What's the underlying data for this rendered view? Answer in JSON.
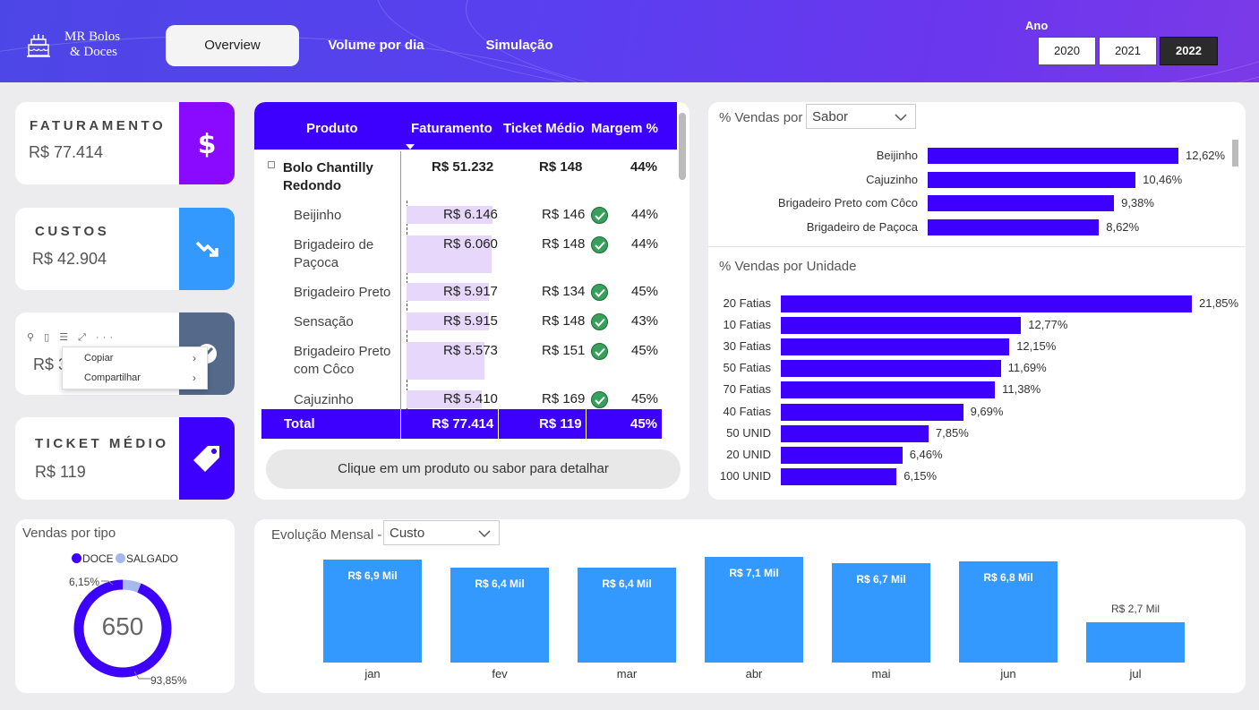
{
  "header": {
    "logo_line1": "MR Bolos",
    "logo_line2": "& Doces",
    "tabs": [
      "Overview",
      "Volume por dia",
      "Simulação"
    ],
    "active_tab": "Overview",
    "year_label": "Ano",
    "years": [
      "2020",
      "2021",
      "2022"
    ],
    "selected_year": "2022"
  },
  "kpis": {
    "faturamento": {
      "title": "FATURAMENTO",
      "value": "R$ 77.414",
      "color": "#8a0aff"
    },
    "custos": {
      "title": "CUSTOS",
      "value": "R$ 42.904",
      "color": "#3399ff"
    },
    "lucro": {
      "value_partial": "R$ 3",
      "color": "#556a8a"
    },
    "ticket": {
      "title": "TICKET MÉDIO",
      "value": "R$ 119",
      "color": "#3d00ff"
    }
  },
  "context_menu": {
    "items": [
      "Copiar",
      "Compartilhar"
    ]
  },
  "table": {
    "headers": [
      "Produto",
      "Faturamento",
      "Ticket Médio",
      "Margem %"
    ],
    "group": {
      "name_line1": "Bolo Chantilly",
      "name_line2": "Redondo",
      "faturamento": "R$ 51.232",
      "ticket": "R$ 148",
      "margem": "44%"
    },
    "rows": [
      {
        "name_line1": "Beijinho",
        "name_line2": "",
        "faturamento": "R$ 6.146",
        "ticket": "R$ 146",
        "margem": "44%",
        "share": 1.0
      },
      {
        "name_line1": "Brigadeiro de",
        "name_line2": "Paçoca",
        "faturamento": "R$ 6.060",
        "ticket": "R$ 148",
        "margem": "44%",
        "share": 0.986
      },
      {
        "name_line1": "Brigadeiro Preto",
        "name_line2": "",
        "faturamento": "R$ 5.917",
        "ticket": "R$ 134",
        "margem": "45%",
        "share": 0.963
      },
      {
        "name_line1": "Sensação",
        "name_line2": "",
        "faturamento": "R$ 5.915",
        "ticket": "R$ 148",
        "margem": "43%",
        "share": 0.962
      },
      {
        "name_line1": "Brigadeiro Preto",
        "name_line2": "com Côco",
        "faturamento": "R$ 5.573",
        "ticket": "R$ 151",
        "margem": "45%",
        "share": 0.907
      },
      {
        "name_line1": "Cajuzinho",
        "name_line2": "",
        "faturamento": "R$ 5.410",
        "ticket": "R$ 169",
        "margem": "45%",
        "share": 0.88
      }
    ],
    "total": {
      "label": "Total",
      "faturamento": "R$ 77.414",
      "ticket": "R$ 119",
      "margem": "45%"
    },
    "detail_button": "Clique em um produto ou sabor para detalhar"
  },
  "sabor": {
    "title": "% Vendas por",
    "dropdown": "Sabor",
    "chart_data": {
      "type": "bar",
      "orientation": "horizontal",
      "categories": [
        "Beijinho",
        "Cajuzinho",
        "Brigadeiro Preto com Côco",
        "Brigadeiro de Paçoca"
      ],
      "values": [
        12.62,
        10.46,
        9.38,
        8.62
      ],
      "labels": [
        "12,62%",
        "10,46%",
        "9,38%",
        "8,62%"
      ],
      "color": "#3d00ff"
    }
  },
  "unidade": {
    "title": "% Vendas por Unidade",
    "chart_data": {
      "type": "bar",
      "orientation": "horizontal",
      "categories": [
        "20 Fatias",
        "10 Fatias",
        "30 Fatias",
        "50 Fatias",
        "70 Fatias",
        "40 Fatias",
        "50 UNID",
        "20 UNID",
        "100 UNID"
      ],
      "values": [
        21.85,
        12.77,
        12.15,
        11.69,
        11.38,
        9.69,
        7.85,
        6.46,
        6.15
      ],
      "labels": [
        "21,85%",
        "12,77%",
        "12,15%",
        "11,69%",
        "11,38%",
        "9,69%",
        "7,85%",
        "6,46%",
        "6,15%"
      ],
      "color": "#3d00ff"
    }
  },
  "tipo": {
    "title": "Vendas por tipo",
    "legend": [
      "DOCE",
      "SALGADO"
    ],
    "center_value": "650",
    "chart_data": {
      "type": "pie",
      "categories": [
        "DOCE",
        "SALGADO"
      ],
      "values": [
        93.85,
        6.15
      ],
      "labels": [
        "93,85%",
        "6,15%"
      ],
      "colors": [
        "#3d00ff",
        "#a7b8ec"
      ]
    }
  },
  "mensal": {
    "title": "Evolução Mensal -",
    "dropdown": "Custo",
    "chart_data": {
      "type": "bar",
      "categories": [
        "jan",
        "fev",
        "mar",
        "abr",
        "mai",
        "jun",
        "jul"
      ],
      "values": [
        6.9,
        6.4,
        6.4,
        7.1,
        6.7,
        6.8,
        2.7
      ],
      "labels": [
        "R$ 6,9 Mil",
        "R$ 6,4 Mil",
        "R$ 6,4 Mil",
        "R$ 7,1 Mil",
        "R$ 6,7 Mil",
        "R$ 6,8 Mil",
        "R$ 2,7 Mil"
      ],
      "color": "#3399ff"
    }
  }
}
